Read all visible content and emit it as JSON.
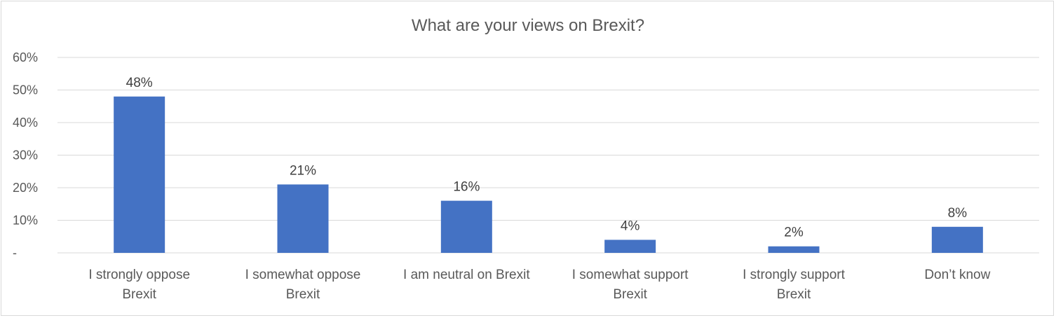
{
  "chart_data": {
    "type": "bar",
    "title": "What are your views on Brexit?",
    "categories": [
      [
        "I strongly oppose",
        "Brexit"
      ],
      [
        "I somewhat oppose",
        "Brexit"
      ],
      [
        "I am neutral on Brexit"
      ],
      [
        "I somewhat support",
        "Brexit"
      ],
      [
        "I strongly support",
        "Brexit"
      ],
      [
        "Don’t know"
      ]
    ],
    "values": [
      48,
      21,
      16,
      4,
      2,
      8
    ],
    "data_labels": [
      "48%",
      "21%",
      "16%",
      "4%",
      "2%",
      "8%"
    ],
    "y_ticks": [
      {
        "value": 0,
        "label": "-"
      },
      {
        "value": 10,
        "label": "10%"
      },
      {
        "value": 20,
        "label": "20%"
      },
      {
        "value": 30,
        "label": "30%"
      },
      {
        "value": 40,
        "label": "40%"
      },
      {
        "value": 50,
        "label": "50%"
      },
      {
        "value": 60,
        "label": "60%"
      }
    ],
    "ylim": [
      0,
      60
    ],
    "grid": true,
    "bar_color": "#4472c4",
    "xlabel": "",
    "ylabel": ""
  }
}
